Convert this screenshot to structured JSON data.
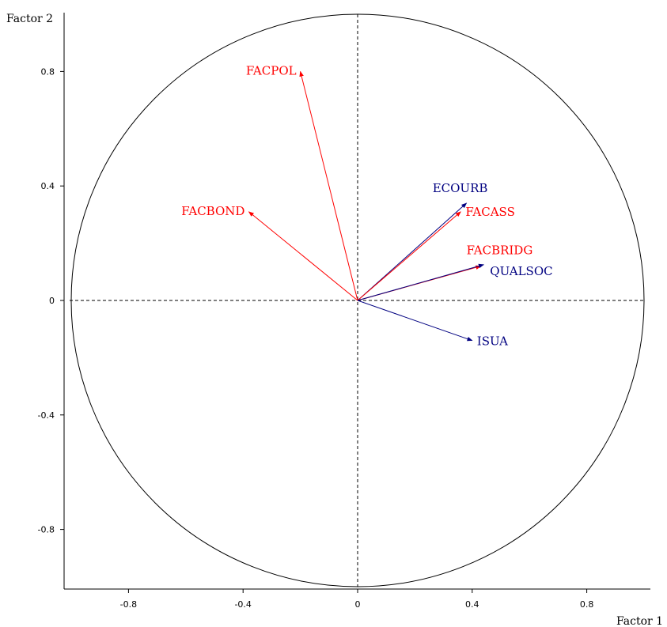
{
  "chart_data": {
    "type": "scatter",
    "subtype": "correlation-circle",
    "title": "",
    "xlabel": "Factor 1",
    "ylabel": "Factor 2",
    "xlim": [
      -1.0,
      1.0
    ],
    "ylim": [
      -1.0,
      1.0
    ],
    "x_ticks": [
      {
        "value": -0.8,
        "label": "-0.8"
      },
      {
        "value": -0.4,
        "label": "-0.4"
      },
      {
        "value": 0,
        "label": "0"
      },
      {
        "value": 0.4,
        "label": "0.4"
      },
      {
        "value": 0.8,
        "label": "0.8"
      }
    ],
    "y_ticks": [
      {
        "value": 0.8,
        "label": "0.8"
      },
      {
        "value": 0.4,
        "label": "0.4"
      },
      {
        "value": 0,
        "label": "0"
      },
      {
        "value": -0.4,
        "label": "-0.4"
      },
      {
        "value": -0.8,
        "label": "-0.8"
      }
    ],
    "circle_radius": 1.0,
    "grid": false,
    "crosshair_at_origin": true,
    "colors": {
      "red_group": "#ff0000",
      "blue_group": "#000080",
      "axes": "#000000"
    },
    "vectors": [
      {
        "label": "FACPOL",
        "x": -0.2,
        "y": 0.8,
        "color": "#ff0000",
        "label_pos": "left"
      },
      {
        "label": "FACBOND",
        "x": -0.38,
        "y": 0.31,
        "color": "#ff0000",
        "label_pos": "left"
      },
      {
        "label": "ECOURB",
        "x": 0.38,
        "y": 0.34,
        "color": "#000080",
        "label_pos": "top"
      },
      {
        "label": "FACASS",
        "x": 0.36,
        "y": 0.31,
        "color": "#ff0000",
        "label_pos": "right"
      },
      {
        "label": "FACBRIDG",
        "x": 0.43,
        "y": 0.12,
        "color": "#ff0000",
        "label_pos": "top-right"
      },
      {
        "label": "QUALSOC",
        "x": 0.44,
        "y": 0.125,
        "color": "#000080",
        "label_pos": "right"
      },
      {
        "label": "ISUA",
        "x": 0.4,
        "y": -0.14,
        "color": "#000080",
        "label_pos": "right"
      }
    ]
  }
}
